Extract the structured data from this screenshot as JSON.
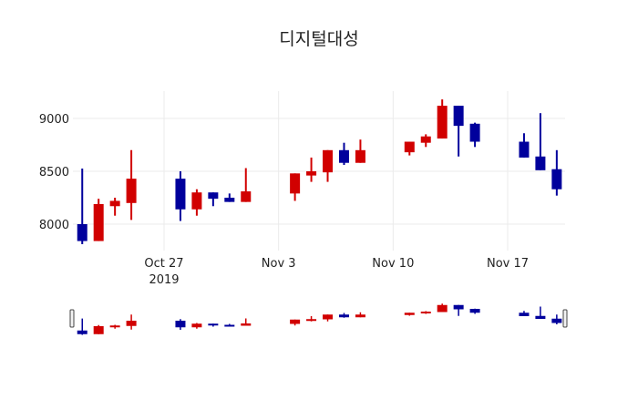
{
  "chart_data": {
    "type": "candlestick",
    "title": "디지털대성",
    "xlabel": "",
    "ylabel": "",
    "ylim": [
      7750,
      9270
    ],
    "y_ticks": [
      8000,
      8500,
      9000
    ],
    "x_ticks": [
      {
        "label": "Oct 27",
        "sublabel": "2019",
        "date": "2019-10-27"
      },
      {
        "label": "Nov 3",
        "sublabel": "",
        "date": "2019-11-03"
      },
      {
        "label": "Nov 10",
        "sublabel": "",
        "date": "2019-11-10"
      },
      {
        "label": "Nov 17",
        "sublabel": "",
        "date": "2019-11-17"
      }
    ],
    "grid": true,
    "rangeslider": true,
    "increasing_color": "#d10000",
    "decreasing_color": "#00009c",
    "series": [
      {
        "date": "2019-10-22",
        "open": 8000,
        "high": 8526,
        "low": 7810,
        "close": 7840
      },
      {
        "date": "2019-10-23",
        "open": 7840,
        "high": 8240,
        "low": 7840,
        "close": 8190
      },
      {
        "date": "2019-10-24",
        "open": 8170,
        "high": 8250,
        "low": 8080,
        "close": 8220
      },
      {
        "date": "2019-10-25",
        "open": 8200,
        "high": 8700,
        "low": 8040,
        "close": 8430
      },
      {
        "date": "2019-10-28",
        "open": 8430,
        "high": 8500,
        "low": 8030,
        "close": 8140
      },
      {
        "date": "2019-10-29",
        "open": 8140,
        "high": 8330,
        "low": 8080,
        "close": 8300
      },
      {
        "date": "2019-10-30",
        "open": 8300,
        "high": 8300,
        "low": 8170,
        "close": 8240
      },
      {
        "date": "2019-10-31",
        "open": 8250,
        "high": 8290,
        "low": 8210,
        "close": 8210
      },
      {
        "date": "2019-11-01",
        "open": 8210,
        "high": 8530,
        "low": 8210,
        "close": 8310
      },
      {
        "date": "2019-11-04",
        "open": 8290,
        "high": 8480,
        "low": 8220,
        "close": 8480
      },
      {
        "date": "2019-11-05",
        "open": 8460,
        "high": 8630,
        "low": 8400,
        "close": 8500
      },
      {
        "date": "2019-11-06",
        "open": 8490,
        "high": 8700,
        "low": 8400,
        "close": 8700
      },
      {
        "date": "2019-11-07",
        "open": 8700,
        "high": 8770,
        "low": 8560,
        "close": 8580
      },
      {
        "date": "2019-11-08",
        "open": 8580,
        "high": 8800,
        "low": 8580,
        "close": 8700
      },
      {
        "date": "2019-11-11",
        "open": 8680,
        "high": 8780,
        "low": 8650,
        "close": 8780
      },
      {
        "date": "2019-11-12",
        "open": 8770,
        "high": 8850,
        "low": 8730,
        "close": 8830
      },
      {
        "date": "2019-11-13",
        "open": 8810,
        "high": 9180,
        "low": 8810,
        "close": 9120
      },
      {
        "date": "2019-11-14",
        "open": 9120,
        "high": 9120,
        "low": 8640,
        "close": 8930
      },
      {
        "date": "2019-11-15",
        "open": 8950,
        "high": 8960,
        "low": 8730,
        "close": 8780
      },
      {
        "date": "2019-11-18",
        "open": 8780,
        "high": 8860,
        "low": 8630,
        "close": 8630
      },
      {
        "date": "2019-11-19",
        "open": 8640,
        "high": 9050,
        "low": 8510,
        "close": 8510
      },
      {
        "date": "2019-11-20",
        "open": 8520,
        "high": 8700,
        "low": 8270,
        "close": 8330
      }
    ]
  }
}
